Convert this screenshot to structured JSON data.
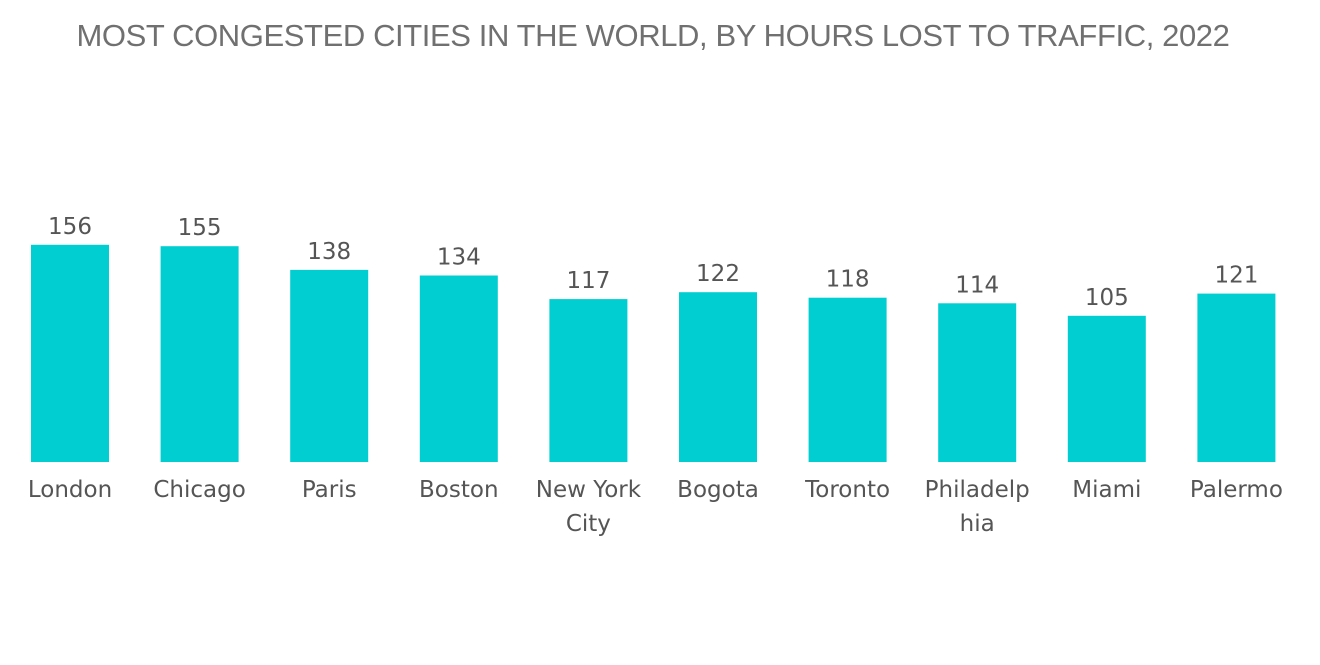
{
  "chart_data": {
    "type": "bar",
    "title": "MOST CONGESTED CITIES IN THE WORLD, BY HOURS LOST TO TRAFFIC, 2022",
    "categories": [
      [
        "London"
      ],
      [
        "Chicago"
      ],
      [
        "Paris"
      ],
      [
        "Boston"
      ],
      [
        "New York",
        "City"
      ],
      [
        "Bogota"
      ],
      [
        "Toronto"
      ],
      [
        "Philadelp",
        "hia"
      ],
      [
        "Miami"
      ],
      [
        "Palermo"
      ]
    ],
    "values": [
      156,
      155,
      138,
      134,
      117,
      122,
      118,
      114,
      105,
      121
    ],
    "xlabel": "",
    "ylabel": "",
    "grid": false,
    "bar_color": "#00CED1",
    "text_color": "#555555",
    "title_color": "#707070"
  }
}
